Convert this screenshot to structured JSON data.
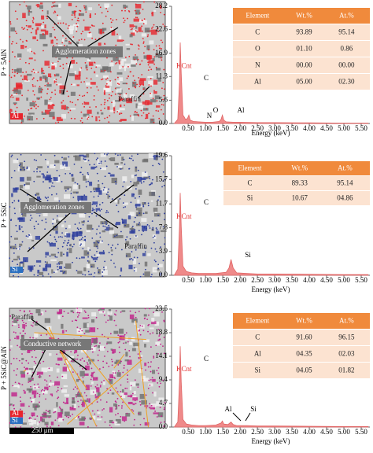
{
  "chart_data": [
    {
      "type": "area",
      "color": "#ef8a8a",
      "x_label": "Energy (keV)",
      "y_label": "KCnt",
      "x": [
        0.1,
        0.2,
        0.25,
        0.27,
        0.3,
        0.35,
        0.39,
        0.42,
        0.48,
        0.52,
        0.56,
        0.65,
        0.8,
        1.0,
        1.2,
        1.4,
        1.45,
        1.49,
        1.53,
        1.6,
        1.8,
        2.0,
        2.5,
        3.0,
        4.0,
        5.0,
        5.7
      ],
      "values": [
        0,
        1,
        10,
        19.5,
        12,
        2,
        1.5,
        1,
        1.2,
        2,
        0.8,
        0.5,
        0.4,
        0.3,
        0.3,
        0.5,
        1,
        2,
        0.8,
        0.4,
        0.3,
        0.3,
        0.2,
        0.2,
        0.15,
        0.1,
        0.1
      ],
      "xlim": [
        0.02,
        5.75
      ],
      "xticks": [
        {
          "value": 0.5,
          "label": "0.50"
        },
        {
          "value": 1,
          "label": "1.00"
        },
        {
          "value": 1.5,
          "label": "1.50"
        },
        {
          "value": 2,
          "label": "2.00"
        },
        {
          "value": 2.5,
          "label": "2.50"
        },
        {
          "value": 3,
          "label": "3.00"
        },
        {
          "value": 3.5,
          "label": "3.50"
        },
        {
          "value": 4,
          "label": "4.00"
        },
        {
          "value": 4.5,
          "label": "4.50"
        },
        {
          "value": 5,
          "label": "5.00"
        },
        {
          "value": 5.5,
          "label": "5.50"
        }
      ],
      "ylim": [
        0,
        28.2
      ],
      "yticks": [
        {
          "value": 0,
          "label": "0.0"
        },
        5.6,
        11.3,
        16.9,
        22.6,
        28.2
      ],
      "annotations": [
        "C",
        "N",
        "O",
        "Al"
      ],
      "table": {
        "header": [
          "Element",
          "Wt.%",
          "At.%"
        ],
        "rows": [
          [
            "C",
            "93.89",
            "95.14"
          ],
          [
            "O",
            "01.10",
            "0.86"
          ],
          [
            "N",
            "00.00",
            "00.00"
          ],
          [
            "Al",
            "05.00",
            "02.30"
          ]
        ]
      }
    },
    {
      "type": "area",
      "color": "#ef8a8a",
      "x_label": "Energy (keV)",
      "y_label": "KCnt",
      "x": [
        0.1,
        0.2,
        0.25,
        0.27,
        0.3,
        0.35,
        0.45,
        0.6,
        0.8,
        1.0,
        1.3,
        1.6,
        1.68,
        1.74,
        1.8,
        1.9,
        2.2,
        2.5,
        3.0,
        4.0,
        5.0,
        5.7
      ],
      "values": [
        0,
        1,
        8,
        13.5,
        8,
        1.5,
        0.6,
        0.4,
        0.3,
        0.3,
        0.3,
        0.5,
        1.2,
        2.6,
        1.2,
        0.4,
        0.3,
        0.2,
        0.2,
        0.15,
        0.1,
        0.1
      ],
      "xlim": [
        0.02,
        5.75
      ],
      "xticks": [
        {
          "value": 0.5,
          "label": "0.50"
        },
        {
          "value": 1,
          "label": "1.00"
        },
        {
          "value": 1.5,
          "label": "1.50"
        },
        {
          "value": 2,
          "label": "2.00"
        },
        {
          "value": 2.5,
          "label": "2.50"
        },
        {
          "value": 3,
          "label": "3.00"
        },
        {
          "value": 3.5,
          "label": "3.50"
        },
        {
          "value": 4,
          "label": "4.00"
        },
        {
          "value": 4.5,
          "label": "4.50"
        },
        {
          "value": 5,
          "label": "5.00"
        },
        {
          "value": 5.5,
          "label": "5.50"
        }
      ],
      "ylim": [
        0,
        19.6
      ],
      "yticks": [
        {
          "value": 0,
          "label": "0.0"
        },
        3.9,
        7.8,
        11.7,
        15.7,
        19.6
      ],
      "annotations": [
        "C",
        "Si"
      ],
      "table": {
        "header": [
          "Element",
          "Wt.%",
          "At.%"
        ],
        "rows": [
          [
            "C",
            "89.33",
            "95.14"
          ],
          [
            "Si",
            "10.67",
            "04.86"
          ]
        ]
      }
    },
    {
      "type": "area",
      "color": "#ef8a8a",
      "x_label": "Energy (keV)",
      "y_label": "KCnt",
      "x": [
        0.1,
        0.2,
        0.25,
        0.27,
        0.3,
        0.35,
        0.45,
        0.6,
        0.8,
        1.0,
        1.3,
        1.45,
        1.49,
        1.53,
        1.65,
        1.74,
        1.8,
        1.9,
        2.2,
        2.5,
        3.0,
        4.0,
        5.0,
        5.7
      ],
      "values": [
        0,
        1,
        9,
        16.1,
        9,
        1.5,
        0.6,
        0.4,
        0.3,
        0.3,
        0.4,
        0.8,
        1.2,
        0.6,
        0.5,
        1.0,
        0.5,
        0.3,
        0.3,
        0.2,
        0.2,
        0.15,
        0.1,
        0.1
      ],
      "xlim": [
        0.02,
        5.75
      ],
      "xticks": [
        {
          "value": 0.5,
          "label": "0.50"
        },
        {
          "value": 1,
          "label": "1.00"
        },
        {
          "value": 1.5,
          "label": "1.50"
        },
        {
          "value": 2,
          "label": "2.00"
        },
        {
          "value": 2.5,
          "label": "2.50"
        },
        {
          "value": 3,
          "label": "3.00"
        },
        {
          "value": 3.5,
          "label": "3.50"
        },
        {
          "value": 4,
          "label": "4.00"
        },
        {
          "value": 4.5,
          "label": "4.50"
        },
        {
          "value": 5,
          "label": "5.00"
        },
        {
          "value": 5.5,
          "label": "5.50"
        }
      ],
      "ylim": [
        0,
        23.5
      ],
      "yticks": [
        {
          "value": 0,
          "label": "0.0"
        },
        4.7,
        9.4,
        14.1,
        18.8,
        23.5
      ],
      "annotations": [
        "C",
        "Al",
        "Si"
      ],
      "table": {
        "header": [
          "Element",
          "Wt.%",
          "At.%"
        ],
        "rows": [
          [
            "C",
            "91.60",
            "96.15"
          ],
          [
            "Al",
            "04.35",
            "02.03"
          ],
          [
            "Si",
            "04.05",
            "01.82"
          ]
        ]
      }
    }
  ],
  "images": [
    {
      "side_label": "P + 5AlN",
      "labels": [
        "Agglomeration zones",
        "Paraffin"
      ],
      "legend": [
        "Al"
      ]
    },
    {
      "side_label": "P + 5SiC",
      "labels": [
        "Agglomeration zones",
        "Paraffin"
      ],
      "legend": [
        "Si"
      ]
    },
    {
      "side_label": "P + 5SiC@AlN",
      "labels": [
        "Paraffin",
        "Conductive network"
      ],
      "legend": [
        "Al",
        "Si"
      ],
      "scale_bar": "250 μm"
    }
  ]
}
